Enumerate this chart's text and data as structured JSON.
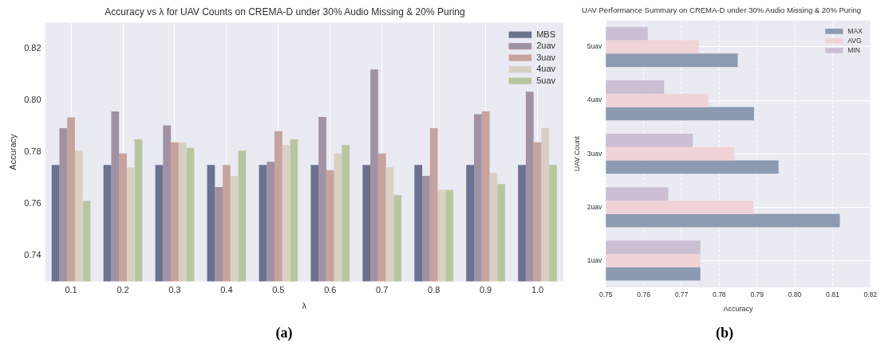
{
  "chart_data": [
    {
      "type": "bar",
      "title": "Accuracy vs λ for UAV Counts on CREMA-D under 30% Audio Missing & 20% Puring",
      "xlabel": "λ",
      "ylabel": "Accuracy",
      "categories": [
        "0.1",
        "0.2",
        "0.3",
        "0.4",
        "0.5",
        "0.6",
        "0.7",
        "0.8",
        "0.9",
        "1.0"
      ],
      "series": [
        {
          "name": "MBS",
          "color": "#6b728e",
          "values": [
            0.775,
            0.775,
            0.775,
            0.775,
            0.775,
            0.775,
            0.775,
            0.775,
            0.775,
            0.775
          ]
        },
        {
          "name": "2uav",
          "color": "#a192a3",
          "values": [
            0.7892,
            0.7957,
            0.7903,
            0.7665,
            0.7762,
            0.7935,
            0.8119,
            0.7708,
            0.7946,
            0.8033
          ]
        },
        {
          "name": "3uav",
          "color": "#c7a39e",
          "values": [
            0.7934,
            0.7795,
            0.7838,
            0.775,
            0.7881,
            0.773,
            0.7795,
            0.7892,
            0.7957,
            0.7838
          ]
        },
        {
          "name": "4uav",
          "color": "#d9d0c4",
          "values": [
            0.7805,
            0.7741,
            0.7838,
            0.7708,
            0.7827,
            0.7795,
            0.7741,
            0.7654,
            0.7719,
            0.7892
          ]
        },
        {
          "name": "5uav",
          "color": "#b8c6a0",
          "values": [
            0.7611,
            0.7849,
            0.7816,
            0.7805,
            0.7849,
            0.7827,
            0.7633,
            0.7654,
            0.7676,
            0.775
          ]
        }
      ],
      "ylim": [
        0.73,
        0.83
      ],
      "yticks": [
        0.74,
        0.76,
        0.78,
        {
          "value": 0.8,
          "label": "0.80"
        },
        0.82
      ],
      "grid": "x",
      "legend": "top right",
      "annotations": [
        "(a)"
      ]
    },
    {
      "type": "bar",
      "orientation": "horizontal",
      "title": "UAV Performance Summary on CREMA-D under 30% Audio Missing & 20% Puring",
      "xlabel": "Accuracy",
      "ylabel": "UAV Count",
      "categories": [
        "5uav",
        "4uav",
        "3uav",
        "2uav",
        "1uav"
      ],
      "series": [
        {
          "name": "MAX",
          "color": "#8c9ab2",
          "values": [
            0.7849,
            0.7892,
            0.7957,
            0.8119,
            0.775
          ]
        },
        {
          "name": "AVG",
          "color": "#f0d3d6",
          "values": [
            0.7746,
            0.7771,
            0.7839,
            0.789,
            0.775
          ]
        },
        {
          "name": "MIN",
          "color": "#cbbfd3",
          "values": [
            0.7611,
            0.7654,
            0.773,
            0.7665,
            0.775
          ]
        }
      ],
      "xlim": [
        0.75,
        0.82
      ],
      "xticks": [
        0.75,
        0.76,
        0.77,
        0.78,
        0.79,
        {
          "value": 0.8,
          "label": "0.80"
        },
        0.81,
        0.82
      ],
      "grid": true,
      "legend": "top right",
      "annotations": [
        "(b)"
      ]
    }
  ]
}
